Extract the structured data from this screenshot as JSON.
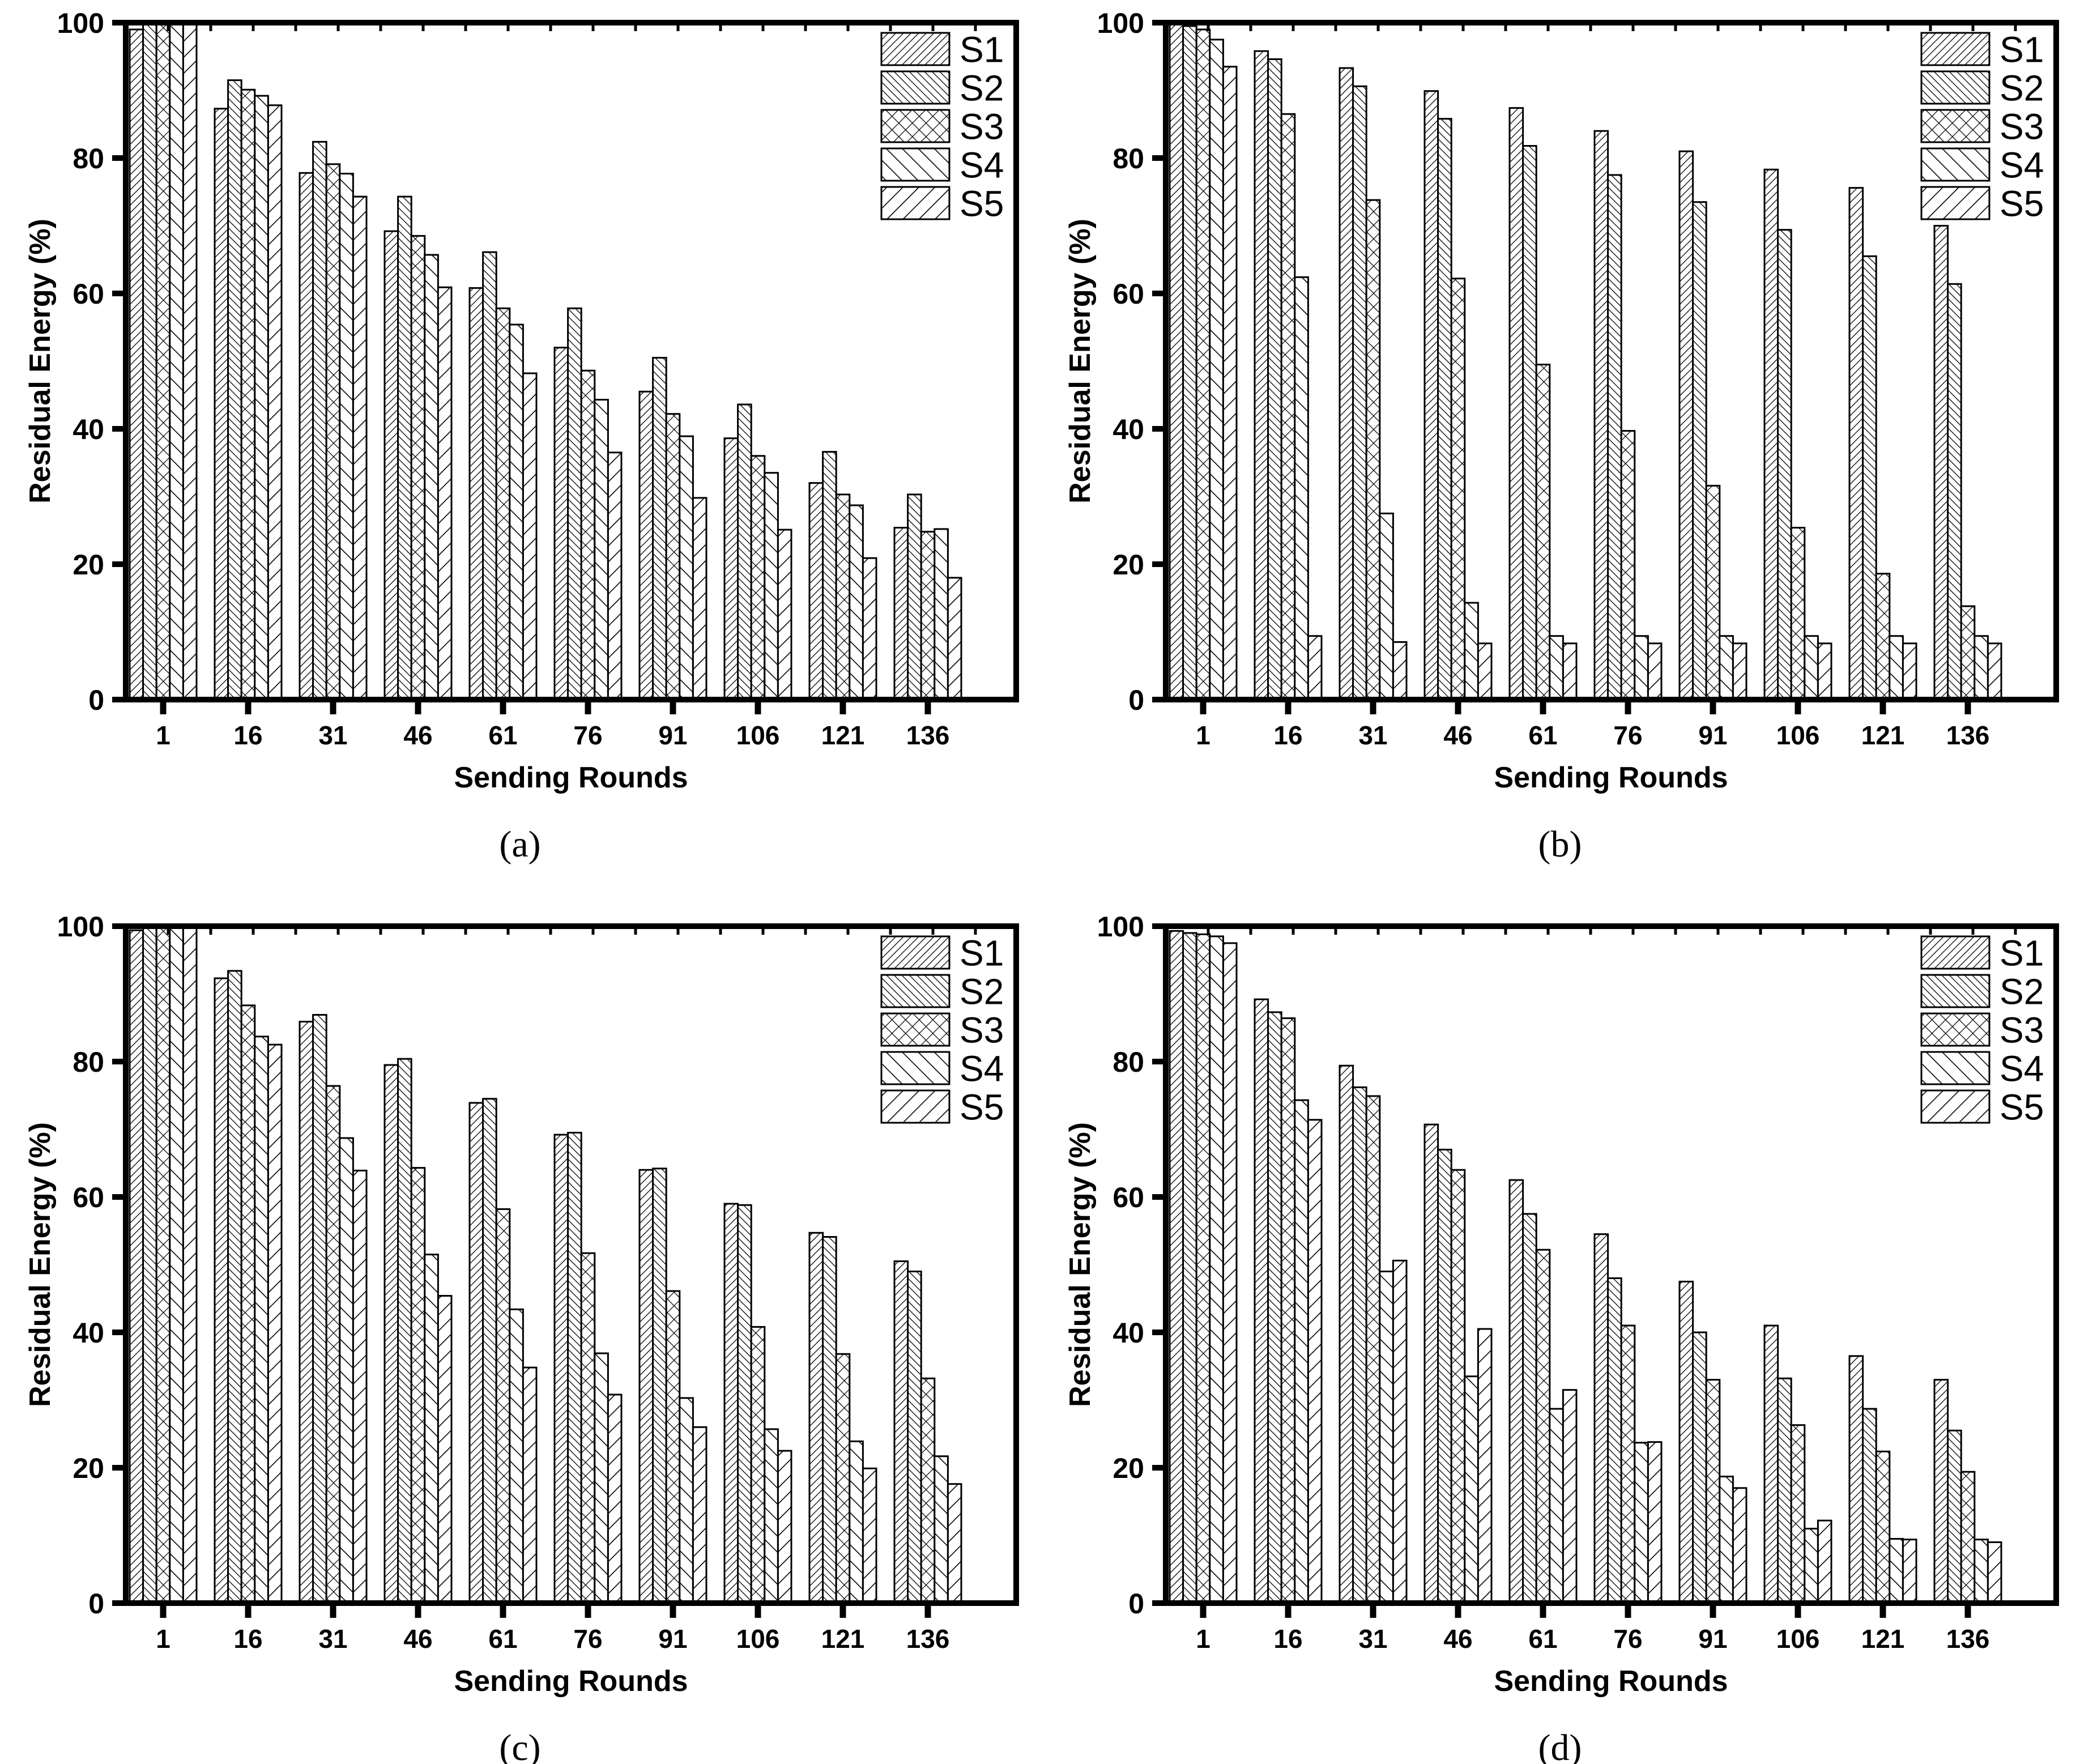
{
  "figure": {
    "paper_color": "#ffffff",
    "ink_color": "#000000",
    "ylabel": "Residual Energy (%)",
    "xlabel": "Sending Rounds",
    "y_tick_labels": [
      "0",
      "20",
      "40",
      "60",
      "80",
      "100"
    ],
    "x_tick_labels": [
      "1",
      "16",
      "31",
      "46",
      "61",
      "76",
      "91",
      "106",
      "121",
      "136"
    ],
    "legend": {
      "position": "top-right",
      "items": [
        {
          "label": "S1",
          "pattern": "dense-diagonal-up"
        },
        {
          "label": "S2",
          "pattern": "dense-diagonal-down"
        },
        {
          "label": "S3",
          "pattern": "crosshatch"
        },
        {
          "label": "S4",
          "pattern": "sparse-diagonal-down"
        },
        {
          "label": "S5",
          "pattern": "sparse-diagonal-up"
        }
      ]
    }
  },
  "chart_data": [
    {
      "type": "bar",
      "panel": "a",
      "caption": "(a)",
      "xlabel": "Sending Rounds",
      "ylabel": "Residual Energy (%)",
      "ylim": [
        0,
        100
      ],
      "grid": false,
      "legend_position": "top-right",
      "categories": [
        1,
        16,
        31,
        46,
        61,
        76,
        91,
        106,
        121,
        136
      ],
      "series": [
        {
          "name": "S1",
          "values": [
            99.0,
            87.3,
            77.8,
            69.2,
            60.8,
            52.0,
            45.5,
            38.6,
            32.0,
            25.4
          ]
        },
        {
          "name": "S2",
          "values": [
            99.8,
            91.5,
            82.4,
            74.3,
            66.1,
            57.8,
            50.5,
            43.6,
            36.6,
            30.3
          ]
        },
        {
          "name": "S3",
          "values": [
            99.8,
            90.1,
            79.1,
            68.5,
            57.8,
            48.6,
            42.2,
            36.0,
            30.3,
            24.8
          ]
        },
        {
          "name": "S4",
          "values": [
            99.8,
            89.2,
            77.7,
            65.7,
            55.4,
            44.3,
            38.9,
            33.5,
            28.7,
            25.2
          ]
        },
        {
          "name": "S5",
          "values": [
            99.8,
            87.8,
            74.3,
            60.9,
            48.2,
            36.5,
            29.8,
            25.1,
            20.9,
            18.0
          ]
        }
      ]
    },
    {
      "type": "bar",
      "panel": "b",
      "caption": "(b)",
      "xlabel": "Sending Rounds",
      "ylabel": "Residual Energy (%)",
      "ylim": [
        0,
        100
      ],
      "grid": false,
      "legend_position": "top-right",
      "categories": [
        1,
        16,
        31,
        46,
        61,
        76,
        91,
        106,
        121,
        136
      ],
      "series": [
        {
          "name": "S1",
          "values": [
            100.0,
            95.8,
            93.3,
            89.9,
            87.4,
            84.0,
            81.0,
            78.3,
            75.6,
            70.0
          ]
        },
        {
          "name": "S2",
          "values": [
            99.5,
            94.6,
            90.6,
            85.8,
            81.8,
            77.5,
            73.5,
            69.4,
            65.5,
            61.4
          ]
        },
        {
          "name": "S3",
          "values": [
            99.0,
            86.5,
            73.8,
            62.2,
            49.5,
            39.7,
            31.6,
            25.4,
            18.6,
            13.8
          ]
        },
        {
          "name": "S4",
          "values": [
            97.5,
            62.4,
            27.5,
            14.3,
            9.4,
            9.4,
            9.4,
            9.4,
            9.4,
            9.4
          ]
        },
        {
          "name": "S5",
          "values": [
            93.5,
            9.4,
            8.5,
            8.3,
            8.3,
            8.3,
            8.3,
            8.3,
            8.3,
            8.3
          ]
        }
      ]
    },
    {
      "type": "bar",
      "panel": "c",
      "caption": "(c)",
      "xlabel": "Sending Rounds",
      "ylabel": "Residual Energy (%)",
      "ylim": [
        0,
        100
      ],
      "grid": false,
      "legend_position": "top-right",
      "categories": [
        1,
        16,
        31,
        46,
        61,
        76,
        91,
        106,
        121,
        136
      ],
      "series": [
        {
          "name": "S1",
          "values": [
            99.4,
            92.3,
            85.9,
            79.5,
            73.9,
            69.2,
            64.0,
            59.0,
            54.7,
            50.5
          ]
        },
        {
          "name": "S2",
          "values": [
            100.0,
            93.4,
            86.9,
            80.4,
            74.5,
            69.5,
            64.2,
            58.8,
            54.1,
            49.0
          ]
        },
        {
          "name": "S3",
          "values": [
            99.8,
            88.3,
            76.4,
            64.3,
            58.2,
            51.7,
            46.1,
            40.8,
            36.8,
            33.2
          ]
        },
        {
          "name": "S4",
          "values": [
            100.0,
            83.7,
            68.7,
            51.5,
            43.4,
            36.9,
            30.3,
            25.7,
            23.9,
            21.7
          ]
        },
        {
          "name": "S5",
          "values": [
            100.0,
            82.5,
            63.9,
            45.4,
            34.8,
            30.8,
            26.0,
            22.5,
            19.9,
            17.6
          ]
        }
      ]
    },
    {
      "type": "bar",
      "panel": "d",
      "caption": "(d)",
      "xlabel": "Sending Rounds",
      "ylabel": "Residual Energy (%)",
      "ylim": [
        0,
        100
      ],
      "grid": false,
      "legend_position": "top-right",
      "categories": [
        1,
        16,
        31,
        46,
        61,
        76,
        91,
        106,
        121,
        136
      ],
      "series": [
        {
          "name": "S1",
          "values": [
            99.3,
            89.2,
            79.4,
            70.7,
            62.5,
            54.5,
            47.5,
            41.0,
            36.5,
            33.0
          ]
        },
        {
          "name": "S2",
          "values": [
            99.0,
            87.3,
            76.2,
            67.0,
            57.5,
            48.0,
            40.0,
            33.2,
            28.7,
            25.5
          ]
        },
        {
          "name": "S3",
          "values": [
            98.8,
            86.4,
            74.9,
            64.0,
            52.2,
            41.0,
            33.0,
            26.3,
            22.4,
            19.4
          ]
        },
        {
          "name": "S4",
          "values": [
            98.5,
            74.3,
            49.0,
            33.5,
            28.7,
            23.7,
            18.7,
            11.0,
            9.5,
            9.4
          ]
        },
        {
          "name": "S5",
          "values": [
            97.5,
            71.4,
            50.6,
            40.5,
            31.5,
            23.8,
            17.0,
            12.2,
            9.4,
            9.0
          ]
        }
      ]
    }
  ]
}
